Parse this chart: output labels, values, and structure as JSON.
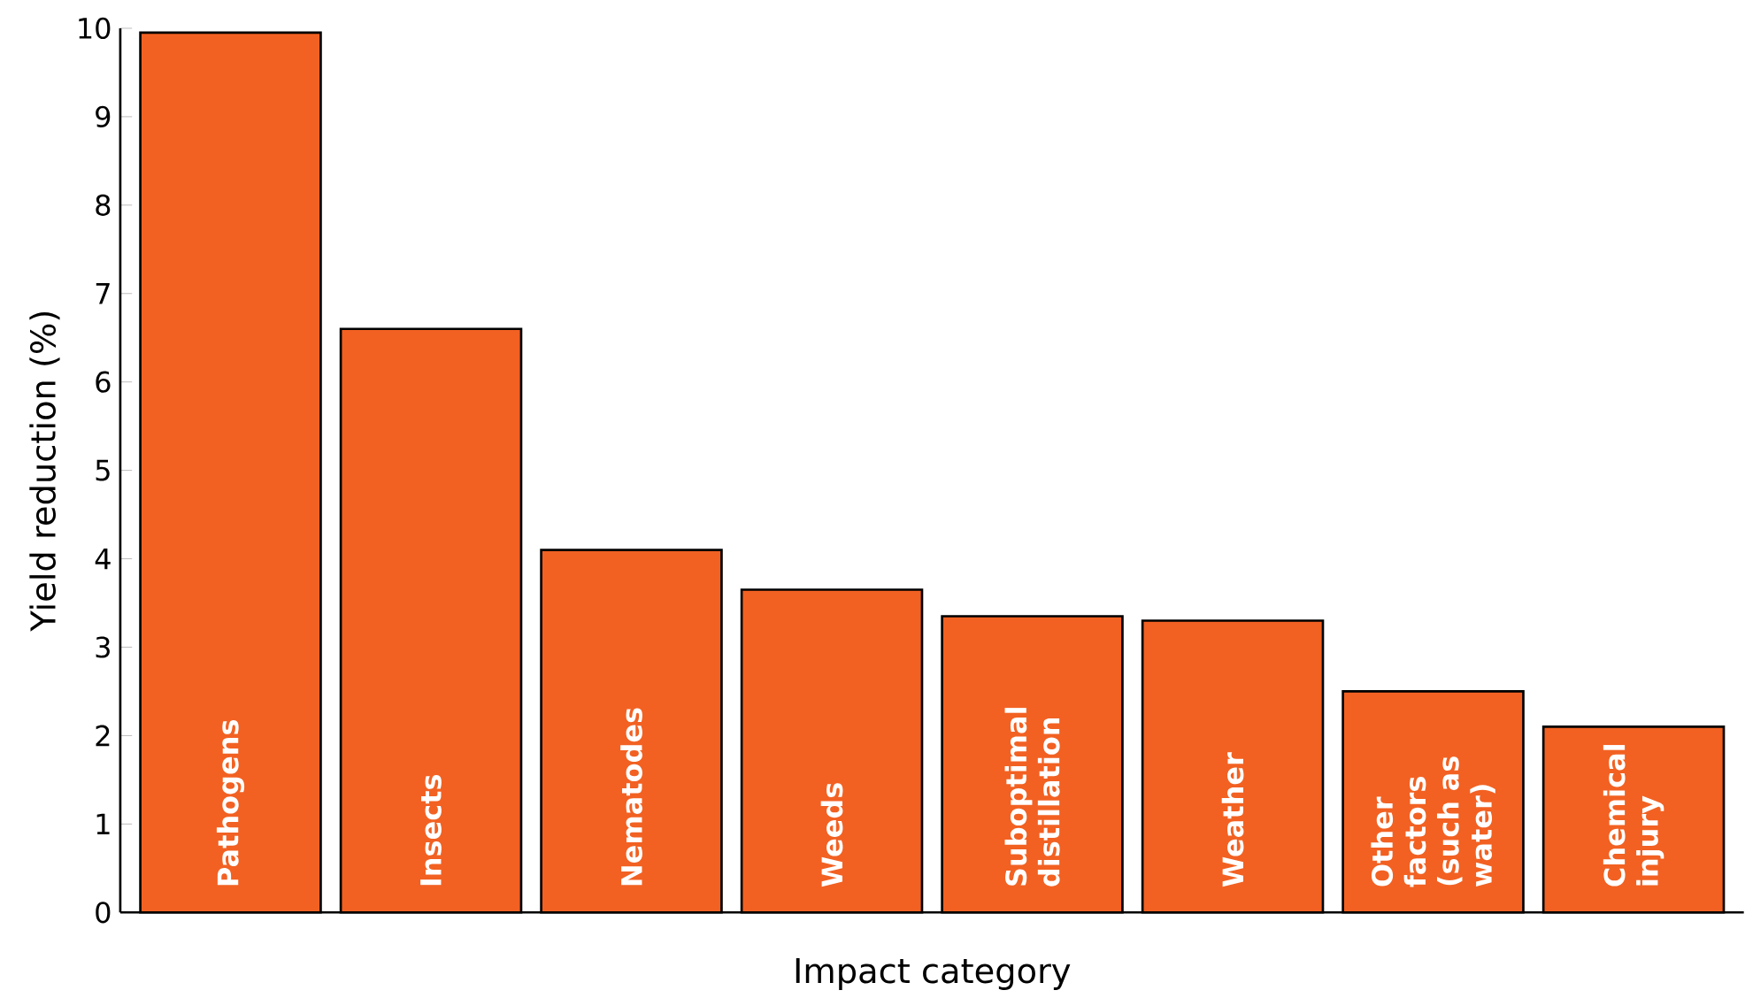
{
  "chart_data": {
    "type": "bar",
    "xlabel": "Impact category",
    "ylabel": "Yield reduction (%)",
    "categories": [
      "Pathogens",
      "Insects",
      "Nematodes",
      "Weeds",
      "Suboptimal distillation",
      "Weather",
      "Other factors (such as water)",
      "Chemical injury"
    ],
    "values": [
      9.95,
      6.6,
      4.1,
      3.65,
      3.35,
      3.3,
      2.5,
      2.1
    ],
    "color": "#f26122",
    "ylim": [
      0,
      10
    ],
    "yticks": [
      0,
      1,
      2,
      3,
      4,
      5,
      6,
      7,
      8,
      9,
      10
    ]
  }
}
